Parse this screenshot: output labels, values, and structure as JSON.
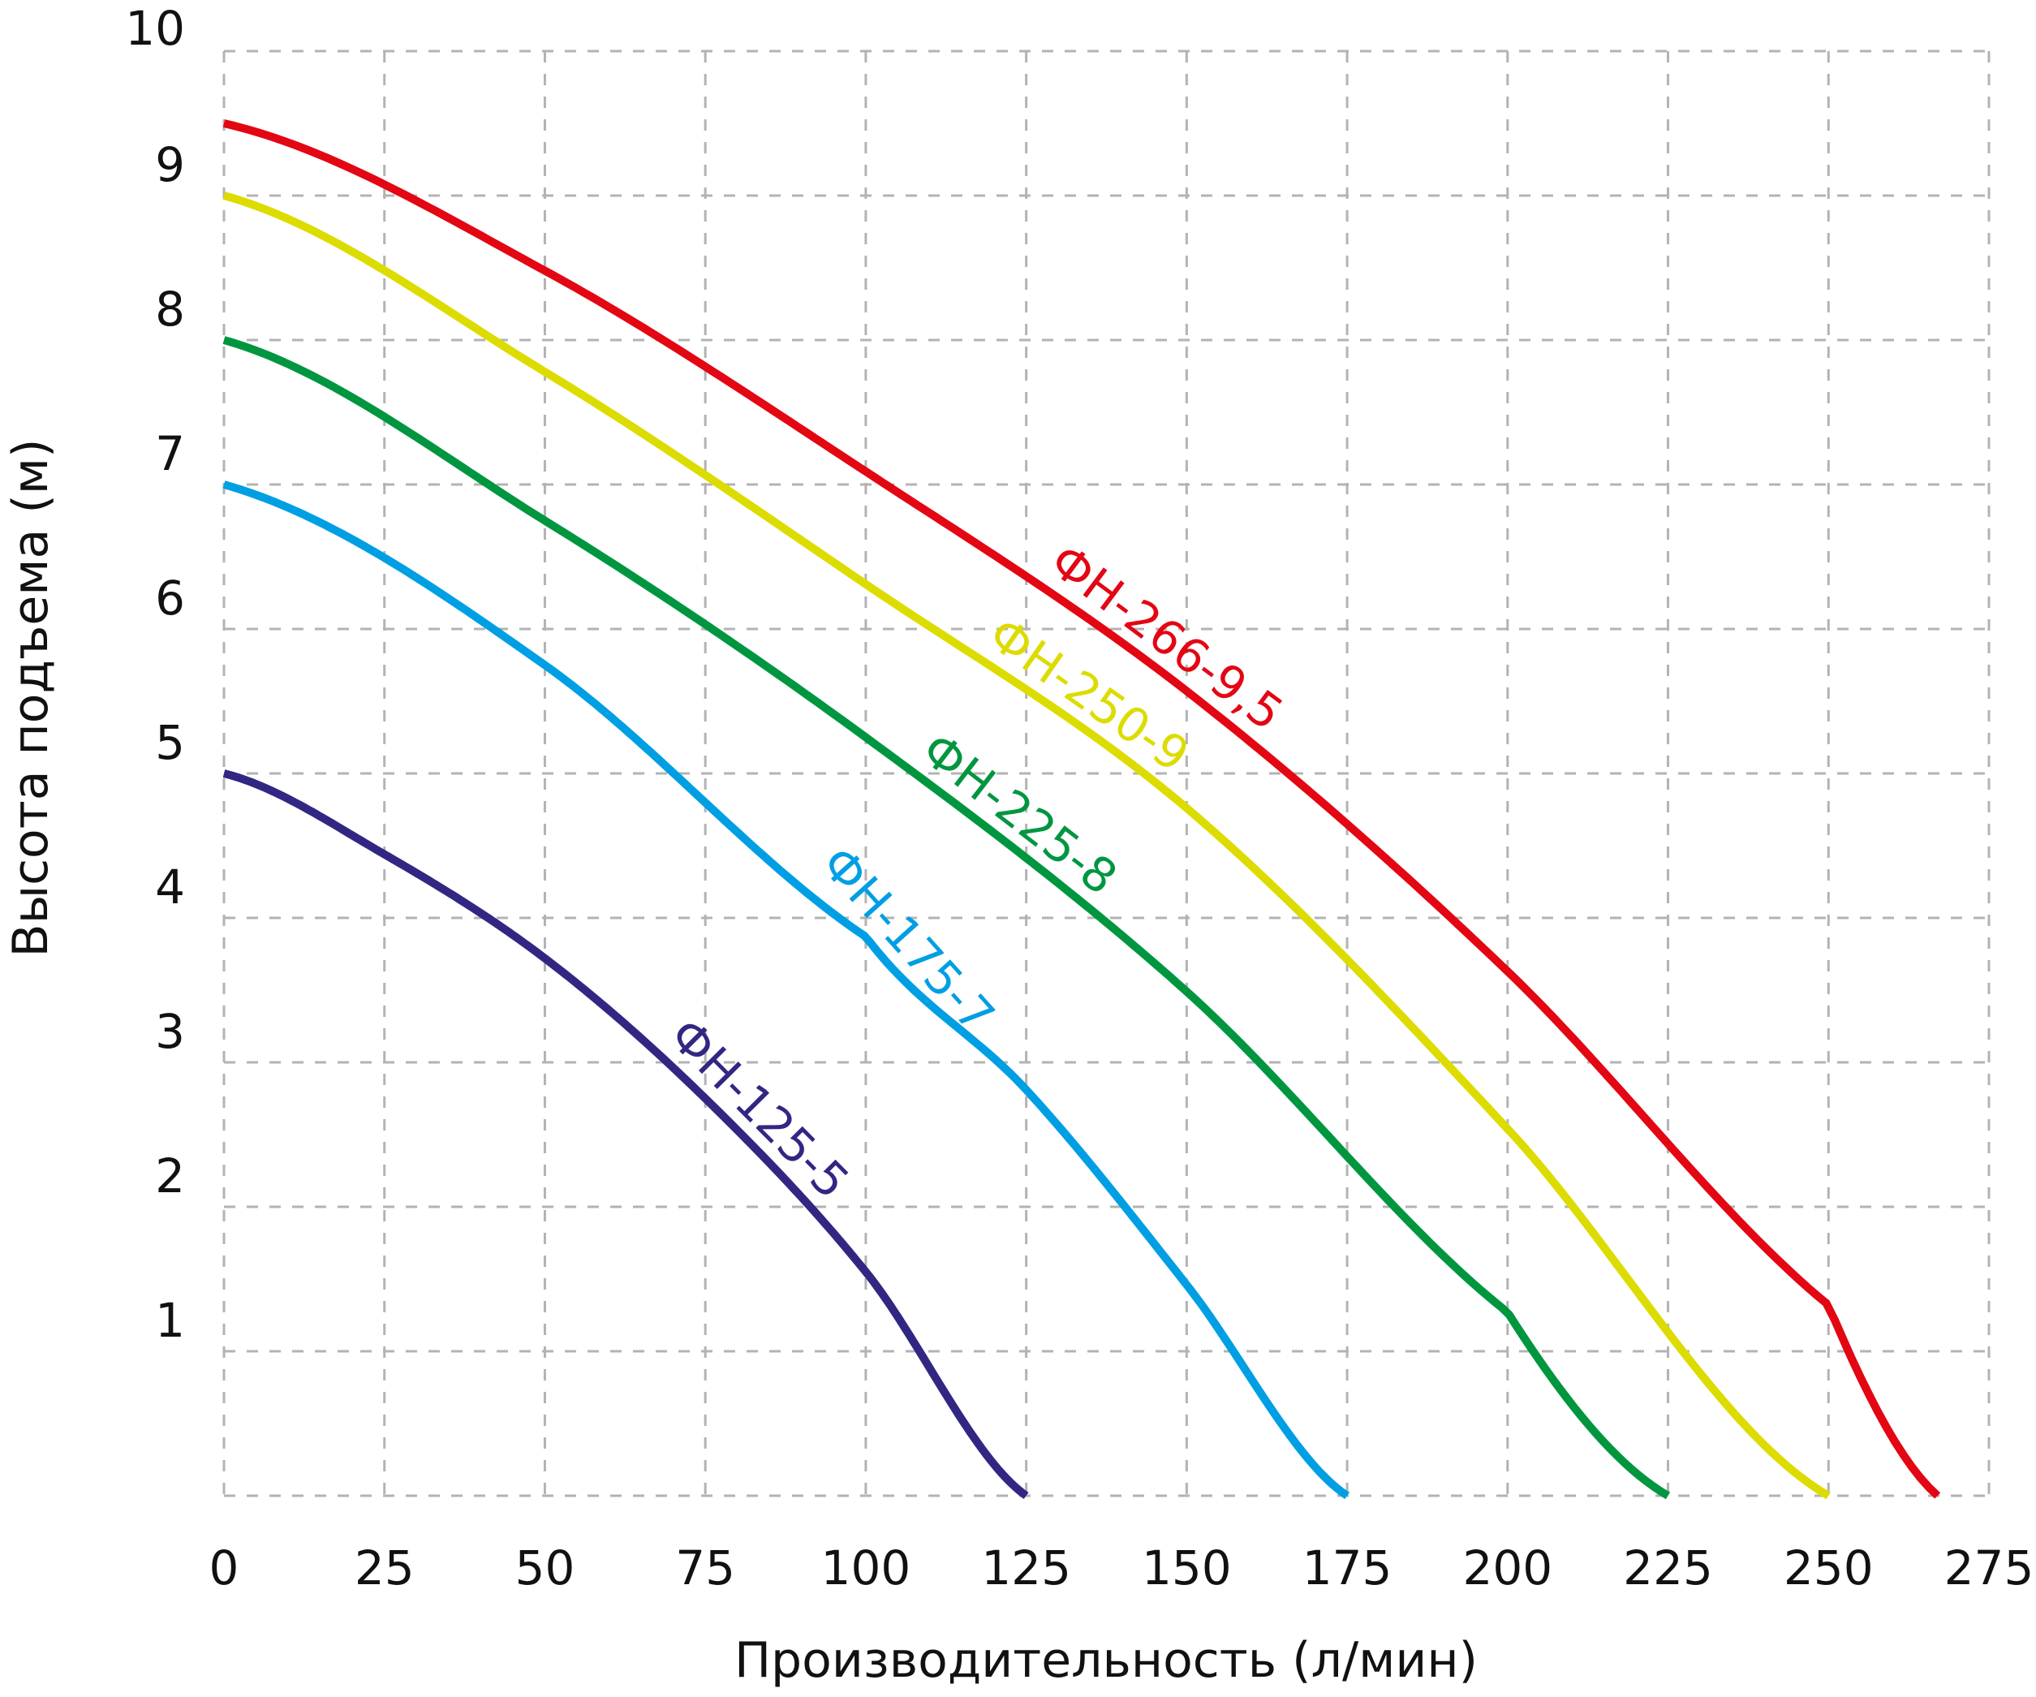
{
  "chart_data": {
    "type": "line",
    "title": "",
    "xlabel": "Производительность (л/мин)",
    "ylabel": "Высота подъема (м)",
    "xlim": [
      0,
      275
    ],
    "ylim": [
      0,
      10
    ],
    "x_ticks": [
      "0",
      "25",
      "50",
      "75",
      "100",
      "125",
      "150",
      "175",
      "200",
      "225",
      "250",
      "275"
    ],
    "y_ticks": [
      "1",
      "2",
      "3",
      "4",
      "5",
      "6",
      "7",
      "8",
      "9",
      "10"
    ],
    "grid": true,
    "grid_style": "dashed",
    "legend": "inline labels on curves",
    "series": [
      {
        "name": "ФН-266-9,5",
        "color": "#e30613",
        "x": [
          0,
          50,
          100,
          150,
          200,
          250,
          267
        ],
        "y": [
          9.5,
          8.48,
          7.09,
          5.57,
          3.63,
          1.32,
          0
        ]
      },
      {
        "name": "ФН-250-9",
        "color": "#dcdc00",
        "x": [
          0,
          50,
          100,
          150,
          200,
          250
        ],
        "y": [
          9.0,
          7.78,
          6.31,
          4.76,
          2.54,
          0
        ]
      },
      {
        "name": "ФН-225-8",
        "color": "#009640",
        "x": [
          0,
          50,
          100,
          150,
          200,
          225
        ],
        "y": [
          8.0,
          6.75,
          5.25,
          3.49,
          1.27,
          0
        ]
      },
      {
        "name": "ФН-175-7",
        "color": "#009fe3",
        "x": [
          0,
          50,
          100,
          125,
          150,
          175
        ],
        "y": [
          7.0,
          5.75,
          3.87,
          2.81,
          1.46,
          0
        ]
      },
      {
        "name": "ФН-125-5",
        "color": "#312783",
        "x": [
          0,
          25,
          50,
          75,
          100,
          125
        ],
        "y": [
          5.0,
          4.44,
          3.72,
          2.75,
          1.55,
          0
        ]
      }
    ]
  }
}
